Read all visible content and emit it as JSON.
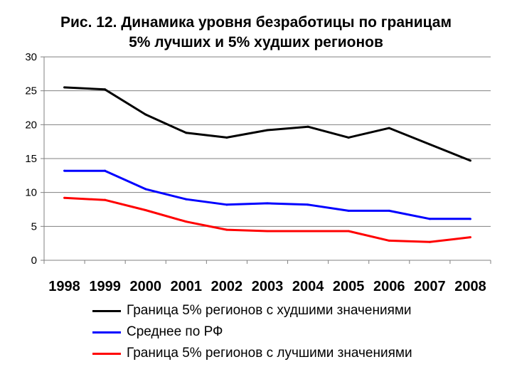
{
  "chart_data": {
    "type": "line",
    "title": [
      "Рис. 12. Динамика уровня безработицы по границам",
      "5% лучших и 5% худших регионов"
    ],
    "xlabel": "",
    "ylabel": "",
    "categories": [
      "1998",
      "1999",
      "2000",
      "2001",
      "2002",
      "2003",
      "2004",
      "2005",
      "2006",
      "2007",
      "2008"
    ],
    "ylim": [
      0,
      30
    ],
    "yticks": [
      "0",
      "5",
      "10",
      "15",
      "20",
      "25",
      "30"
    ],
    "grid": true,
    "legend_position": "bottom",
    "series": [
      {
        "name": "Граница 5% регионов с худшими значениями",
        "color": "#000000",
        "values": [
          25.5,
          25.2,
          21.5,
          18.8,
          18.1,
          19.2,
          19.7,
          18.1,
          19.5,
          17.1,
          14.7
        ]
      },
      {
        "name": "Среднее по РФ",
        "color": "#0000ff",
        "values": [
          13.2,
          13.2,
          10.5,
          9.0,
          8.2,
          8.4,
          8.2,
          7.3,
          7.3,
          6.1,
          6.1
        ]
      },
      {
        "name": "Граница 5% регионов с лучшими значениями",
        "color": "#ff0000",
        "values": [
          9.2,
          8.9,
          7.4,
          5.7,
          4.5,
          4.3,
          4.3,
          4.3,
          2.9,
          2.7,
          3.4
        ]
      }
    ]
  }
}
